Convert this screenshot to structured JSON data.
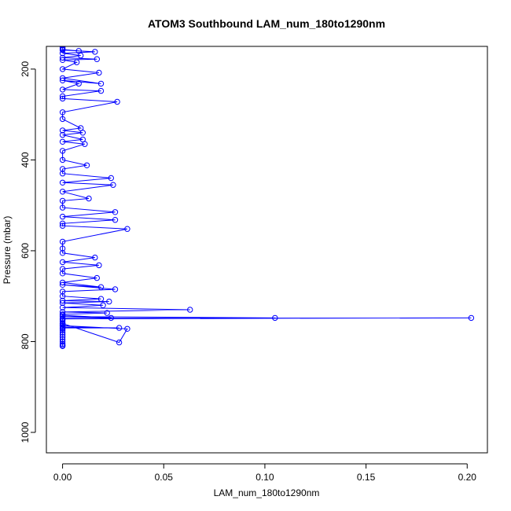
{
  "chart_data": {
    "type": "line",
    "title": "ATOM3 Southbound LAM_num_180to1290nm",
    "xlabel": "LAM_num_180to1290nm",
    "ylabel": "Pressure (mbar)",
    "xlim": [
      -0.008,
      0.21
    ],
    "ylim": [
      1045,
      150
    ],
    "y_reversed": true,
    "xticks": [
      0.0,
      0.05,
      0.1,
      0.15,
      0.2
    ],
    "xtick_labels": [
      "0.00",
      "0.05",
      "0.10",
      "0.15",
      "0.20"
    ],
    "yticks": [
      200,
      400,
      600,
      800,
      1000
    ],
    "ytick_labels": [
      "200",
      "400",
      "600",
      "800",
      "1000"
    ],
    "grid": false,
    "line_color": "#0000ff",
    "marker": "open-circle",
    "series": [
      {
        "x": [
          0.0,
          0.0,
          0.0,
          0.0,
          0.0,
          0.0,
          0.0,
          0.0,
          0.0,
          0.0,
          0.0,
          0.028,
          0.0,
          0.0,
          0.0,
          0.0,
          0.028,
          0.032,
          0.0,
          0.0,
          0.0,
          0.0,
          0.0,
          0.202,
          0.0,
          0.105,
          0.0,
          0.024,
          0.0,
          0.0,
          0.022,
          0.0,
          0.063,
          0.0,
          0.02,
          0.0,
          0.023,
          0.0,
          0.019,
          0.0,
          0.0,
          0.026,
          0.0,
          0.019,
          0.0,
          0.017,
          0.0,
          0.0,
          0.018,
          0.0,
          0.016,
          0.0,
          0.0,
          0.0,
          0.032,
          0.0,
          0.0,
          0.026,
          0.0,
          0.026,
          0.0,
          0.0,
          0.013,
          0.0,
          0.025,
          0.0,
          0.024,
          0.0,
          0.0,
          0.012,
          0.0,
          0.0,
          0.011,
          0.0,
          0.01,
          0.0,
          0.01,
          0.0,
          0.009,
          0.0,
          0.0,
          0.027,
          0.0,
          0.0,
          0.019,
          0.0,
          0.008,
          0.0,
          0.019,
          0.0,
          0.018,
          0.0,
          0.007,
          0.0,
          0.017,
          0.0,
          0.009,
          0.0,
          0.016,
          0.0,
          0.008,
          0.0,
          0.0,
          0.0
        ],
        "y": [
          810,
          808,
          805,
          800,
          795,
          790,
          785,
          780,
          775,
          772,
          770,
          770,
          768,
          765,
          762,
          760,
          802,
          772,
          765,
          760,
          755,
          752,
          750,
          748,
          749,
          748,
          745,
          748,
          742,
          740,
          737,
          735,
          730,
          725,
          720,
          715,
          712,
          710,
          706,
          700,
          690,
          685,
          675,
          680,
          670,
          660,
          650,
          640,
          632,
          625,
          615,
          605,
          595,
          580,
          552,
          545,
          540,
          532,
          525,
          515,
          505,
          490,
          485,
          470,
          455,
          450,
          440,
          430,
          420,
          412,
          400,
          380,
          365,
          360,
          355,
          345,
          340,
          335,
          330,
          310,
          295,
          272,
          265,
          260,
          248,
          245,
          232,
          225,
          232,
          220,
          208,
          200,
          185,
          180,
          178,
          175,
          170,
          165,
          162,
          158,
          160,
          157,
          155,
          152
        ]
      }
    ]
  }
}
